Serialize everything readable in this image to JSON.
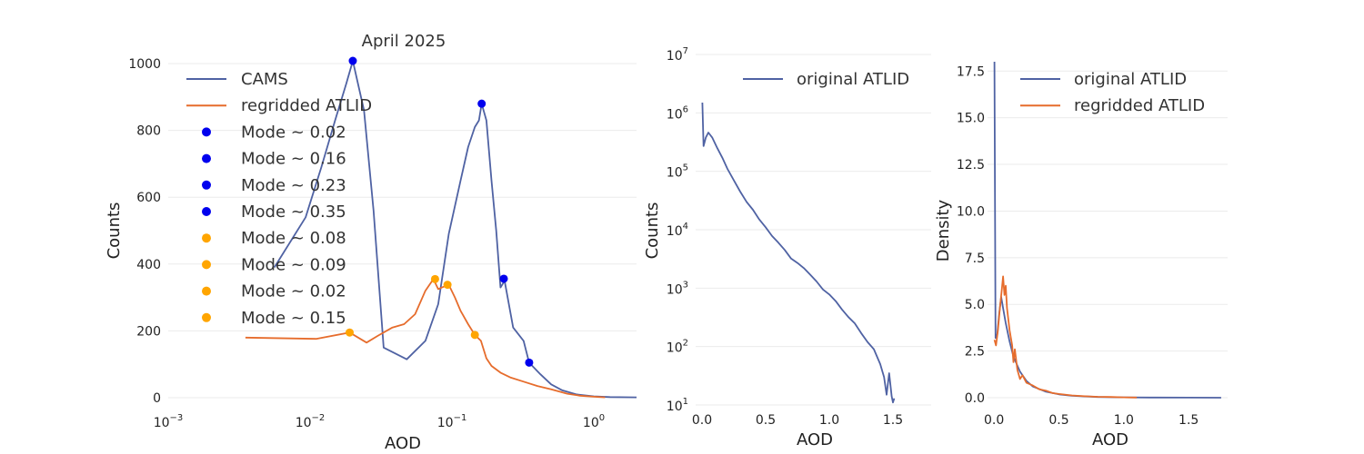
{
  "colors": {
    "cams": "#4f62a3",
    "atlid": "#e66c2c",
    "mode_blue": "#0000ee",
    "mode_orange": "#ffa500"
  },
  "chart_data": [
    {
      "type": "line",
      "title": "April 2025",
      "xlabel": "AOD",
      "ylabel": "Counts",
      "xscale": "log",
      "xlim": [
        0.001,
        2.0
      ],
      "ylim": [
        0,
        1000
      ],
      "grid": true,
      "legend_position": "top-left",
      "x_ticks": [
        {
          "value": 0.001,
          "base": "10",
          "exp": "−3"
        },
        {
          "value": 0.01,
          "base": "10",
          "exp": "−2"
        },
        {
          "value": 0.1,
          "base": "10",
          "exp": "−1"
        },
        {
          "value": 1,
          "base": "10",
          "exp": "0"
        }
      ],
      "y_ticks": [
        0,
        200,
        400,
        600,
        800,
        1000
      ],
      "series": [
        {
          "name": "CAMS",
          "color_key": "cams",
          "points": [
            [
              0.0056,
              390
            ],
            [
              0.0093,
              540
            ],
            [
              0.012,
              690
            ],
            [
              0.015,
              830
            ],
            [
              0.018,
              940
            ],
            [
              0.02,
              1008
            ],
            [
              0.024,
              860
            ],
            [
              0.028,
              560
            ],
            [
              0.033,
              150
            ],
            [
              0.048,
              115
            ],
            [
              0.065,
              170
            ],
            [
              0.08,
              280
            ],
            [
              0.095,
              490
            ],
            [
              0.115,
              650
            ],
            [
              0.13,
              750
            ],
            [
              0.145,
              810
            ],
            [
              0.155,
              830
            ],
            [
              0.162,
              880
            ],
            [
              0.175,
              830
            ],
            [
              0.19,
              650
            ],
            [
              0.205,
              500
            ],
            [
              0.22,
              330
            ],
            [
              0.235,
              350
            ],
            [
              0.27,
              210
            ],
            [
              0.32,
              170
            ],
            [
              0.35,
              105
            ],
            [
              0.42,
              70
            ],
            [
              0.5,
              40
            ],
            [
              0.6,
              22
            ],
            [
              0.75,
              10
            ],
            [
              1.0,
              4
            ],
            [
              1.3,
              2
            ],
            [
              2.0,
              1
            ]
          ]
        },
        {
          "name": "regridded ATLID",
          "color_key": "atlid",
          "points": [
            [
              0.0035,
              180
            ],
            [
              0.011,
              176
            ],
            [
              0.019,
              195
            ],
            [
              0.025,
              165
            ],
            [
              0.03,
              185
            ],
            [
              0.038,
              210
            ],
            [
              0.046,
              220
            ],
            [
              0.055,
              250
            ],
            [
              0.065,
              320
            ],
            [
              0.074,
              355
            ],
            [
              0.08,
              325
            ],
            [
              0.085,
              330
            ],
            [
              0.095,
              338
            ],
            [
              0.105,
              300
            ],
            [
              0.115,
              260
            ],
            [
              0.13,
              220
            ],
            [
              0.145,
              188
            ],
            [
              0.16,
              170
            ],
            [
              0.175,
              118
            ],
            [
              0.19,
              95
            ],
            [
              0.22,
              75
            ],
            [
              0.26,
              60
            ],
            [
              0.32,
              48
            ],
            [
              0.4,
              35
            ],
            [
              0.5,
              25
            ],
            [
              0.65,
              12
            ],
            [
              0.8,
              6
            ],
            [
              1.0,
              3
            ],
            [
              1.2,
              1
            ]
          ]
        }
      ],
      "modes": [
        {
          "label": "Mode ~ 0.02",
          "x": 0.02,
          "y": 1008,
          "color_key": "mode_blue"
        },
        {
          "label": "Mode ~ 0.16",
          "x": 0.162,
          "y": 880,
          "color_key": "mode_blue"
        },
        {
          "label": "Mode ~ 0.23",
          "x": 0.232,
          "y": 356,
          "color_key": "mode_blue"
        },
        {
          "label": "Mode ~ 0.35",
          "x": 0.35,
          "y": 105,
          "color_key": "mode_blue"
        },
        {
          "label": "Mode ~ 0.08",
          "x": 0.076,
          "y": 355,
          "color_key": "mode_orange"
        },
        {
          "label": "Mode ~ 0.09",
          "x": 0.093,
          "y": 338,
          "color_key": "mode_orange"
        },
        {
          "label": "Mode ~ 0.02",
          "x": 0.019,
          "y": 195,
          "color_key": "mode_orange"
        },
        {
          "label": "Mode ~ 0.15",
          "x": 0.145,
          "y": 188,
          "color_key": "mode_orange"
        }
      ]
    },
    {
      "type": "line",
      "title": "",
      "xlabel": "AOD",
      "ylabel": "Counts",
      "yscale": "log",
      "xlim": [
        -0.05,
        1.8
      ],
      "ylim": [
        10,
        10000000
      ],
      "grid": true,
      "legend_position": "top-right",
      "x_ticks": [
        {
          "value": 0,
          "label": "0.0"
        },
        {
          "value": 0.5,
          "label": "0.5"
        },
        {
          "value": 1,
          "label": "1.0"
        },
        {
          "value": 1.5,
          "label": "1.5"
        }
      ],
      "y_ticks": [
        {
          "value": 10,
          "base": "10",
          "exp": "1"
        },
        {
          "value": 100,
          "base": "10",
          "exp": "2"
        },
        {
          "value": 1000,
          "base": "10",
          "exp": "3"
        },
        {
          "value": 10000,
          "base": "10",
          "exp": "4"
        },
        {
          "value": 100000,
          "base": "10",
          "exp": "5"
        },
        {
          "value": 1000000,
          "base": "10",
          "exp": "6"
        },
        {
          "value": 10000000,
          "base": "10",
          "exp": "7"
        }
      ],
      "series": [
        {
          "name": "original ATLID",
          "color_key": "cams",
          "points": [
            [
              0.003,
              1500000
            ],
            [
              0.012,
              270000
            ],
            [
              0.03,
              380000
            ],
            [
              0.05,
              460000
            ],
            [
              0.08,
              380000
            ],
            [
              0.12,
              250000
            ],
            [
              0.16,
              170000
            ],
            [
              0.2,
              110000
            ],
            [
              0.25,
              70000
            ],
            [
              0.3,
              45000
            ],
            [
              0.35,
              30000
            ],
            [
              0.4,
              22000
            ],
            [
              0.45,
              15000
            ],
            [
              0.5,
              11000
            ],
            [
              0.55,
              7800
            ],
            [
              0.6,
              6000
            ],
            [
              0.65,
              4500
            ],
            [
              0.7,
              3200
            ],
            [
              0.75,
              2700
            ],
            [
              0.8,
              2200
            ],
            [
              0.85,
              1700
            ],
            [
              0.9,
              1300
            ],
            [
              0.95,
              950
            ],
            [
              1.0,
              780
            ],
            [
              1.05,
              600
            ],
            [
              1.1,
              430
            ],
            [
              1.15,
              320
            ],
            [
              1.2,
              250
            ],
            [
              1.25,
              170
            ],
            [
              1.3,
              120
            ],
            [
              1.35,
              90
            ],
            [
              1.4,
              50
            ],
            [
              1.43,
              30
            ],
            [
              1.45,
              15
            ],
            [
              1.47,
              35
            ],
            [
              1.49,
              14
            ],
            [
              1.5,
              11
            ],
            [
              1.51,
              13
            ]
          ]
        }
      ]
    },
    {
      "type": "line",
      "title": "",
      "xlabel": "AOD",
      "ylabel": "Density",
      "xlim": [
        -0.05,
        1.8
      ],
      "ylim": [
        0,
        18
      ],
      "grid": true,
      "legend_position": "top-right",
      "x_ticks": [
        {
          "value": 0,
          "label": "0.0"
        },
        {
          "value": 0.5,
          "label": "0.5"
        },
        {
          "value": 1,
          "label": "1.0"
        },
        {
          "value": 1.5,
          "label": "1.5"
        }
      ],
      "y_ticks": [
        {
          "value": 0,
          "label": "0.0"
        },
        {
          "value": 2.5,
          "label": "2.5"
        },
        {
          "value": 5,
          "label": "5.0"
        },
        {
          "value": 7.5,
          "label": "7.5"
        },
        {
          "value": 10,
          "label": "10.0"
        },
        {
          "value": 12.5,
          "label": "12.5"
        },
        {
          "value": 15,
          "label": "15.0"
        },
        {
          "value": 17.5,
          "label": "17.5"
        }
      ],
      "series": [
        {
          "name": "original ATLID",
          "color_key": "cams",
          "points": [
            [
              0.003,
              18
            ],
            [
              0.012,
              3.2
            ],
            [
              0.025,
              3.4
            ],
            [
              0.04,
              4.5
            ],
            [
              0.055,
              5.4
            ],
            [
              0.07,
              4.8
            ],
            [
              0.09,
              4.0
            ],
            [
              0.12,
              3.0
            ],
            [
              0.15,
              2.2
            ],
            [
              0.2,
              1.4
            ],
            [
              0.25,
              0.9
            ],
            [
              0.3,
              0.6
            ],
            [
              0.4,
              0.32
            ],
            [
              0.5,
              0.18
            ],
            [
              0.6,
              0.1
            ],
            [
              0.8,
              0.04
            ],
            [
              1.0,
              0.02
            ],
            [
              1.2,
              0.01
            ],
            [
              1.5,
              0.005
            ],
            [
              1.75,
              0.002
            ]
          ]
        },
        {
          "name": "regridded ATLID",
          "color_key": "atlid",
          "points": [
            [
              0.003,
              3.1
            ],
            [
              0.015,
              2.8
            ],
            [
              0.03,
              3.6
            ],
            [
              0.045,
              4.8
            ],
            [
              0.06,
              5.8
            ],
            [
              0.07,
              6.5
            ],
            [
              0.08,
              5.5
            ],
            [
              0.09,
              6.0
            ],
            [
              0.1,
              4.8
            ],
            [
              0.12,
              3.6
            ],
            [
              0.14,
              2.8
            ],
            [
              0.15,
              1.9
            ],
            [
              0.16,
              2.6
            ],
            [
              0.18,
              1.5
            ],
            [
              0.2,
              1.0
            ],
            [
              0.22,
              1.2
            ],
            [
              0.25,
              0.8
            ],
            [
              0.3,
              0.65
            ],
            [
              0.35,
              0.45
            ],
            [
              0.4,
              0.38
            ],
            [
              0.45,
              0.25
            ],
            [
              0.5,
              0.2
            ],
            [
              0.6,
              0.12
            ],
            [
              0.7,
              0.08
            ],
            [
              0.8,
              0.05
            ],
            [
              0.9,
              0.04
            ],
            [
              1.0,
              0.02
            ],
            [
              1.1,
              0.01
            ]
          ]
        }
      ]
    }
  ]
}
